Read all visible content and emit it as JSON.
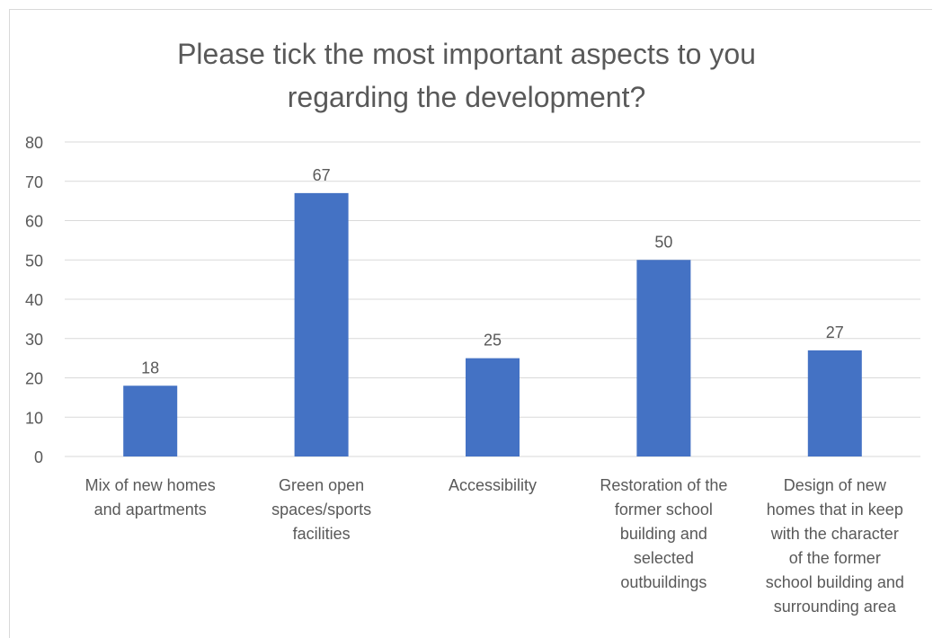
{
  "chart_data": {
    "type": "bar",
    "title": "Please tick the most important aspects to you\nregarding the development?",
    "categories": [
      [
        "Mix of new homes",
        "and apartments"
      ],
      [
        "Green open",
        "spaces/sports",
        "facilities"
      ],
      [
        "Accessibility"
      ],
      [
        "Restoration of the",
        "former school",
        "building and",
        "selected",
        "outbuildings"
      ],
      [
        "Design of new",
        "homes that in keep",
        "with the character",
        "of the former",
        "school building and",
        "surrounding area"
      ]
    ],
    "values": [
      18,
      67,
      25,
      50,
      27
    ],
    "ylim": [
      0,
      80
    ],
    "yticks": [
      0,
      10,
      20,
      30,
      40,
      50,
      60,
      70,
      80
    ],
    "grid": true,
    "legend": "none",
    "bar_color": "#4472c4",
    "grid_color": "#d9d9d9"
  }
}
